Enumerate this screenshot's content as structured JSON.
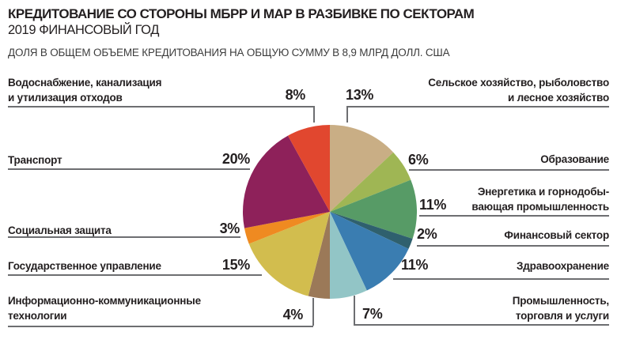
{
  "header": {
    "title": "КРЕДИТОВАНИЕ СО СТОРОНЫ МБРР И МАР В РАЗБИВКЕ ПО СЕКТОРАМ",
    "fiscal_year": "2019 ФИНАНСОВЫЙ ГОД",
    "description": "ДОЛЯ В ОБЩЕМ ОБЪЕМЕ КРЕДИТОВАНИЯ НА ОБЩУЮ СУММУ В 8,9 МЛРД ДОЛЛ. США"
  },
  "chart_data": {
    "type": "pie",
    "title": "КРЕДИТОВАНИЕ СО СТОРОНЫ МБРР И МАР В РАЗБИВКЕ ПО СЕКТОРАМ — 2019 ФИНАНСОВЫЙ ГОД",
    "total_label": "8,9 млрд долл. США",
    "start": "12-oclock",
    "direction": "clockwise",
    "legend_position": "callouts-left-right",
    "slices": [
      {
        "id": "agriculture",
        "label": "Сельское хозяйство, рыболовство и лесное хозяйство",
        "display": "Сельское хозяйство, рыболовство\nи лесное хозяйство",
        "value": 13,
        "pct_text": "13%",
        "color": "#c9ae85"
      },
      {
        "id": "education",
        "label": "Образование",
        "display": "Образование",
        "value": 6,
        "pct_text": "6%",
        "color": "#9fb654"
      },
      {
        "id": "energy-mining",
        "label": "Энергетика и горнодобывающая промышленность",
        "display": "Энергетика и горнодобы-\nвающая промышленность",
        "value": 11,
        "pct_text": "11%",
        "color": "#579b66"
      },
      {
        "id": "financial",
        "label": "Финансовый сектор",
        "display": "Финансовый сектор",
        "value": 2,
        "pct_text": "2%",
        "color": "#2f606e"
      },
      {
        "id": "health",
        "label": "Здравоохранение",
        "display": "Здравоохранение",
        "value": 11,
        "pct_text": "11%",
        "color": "#3a7db1"
      },
      {
        "id": "industry-trade",
        "label": "Промышленность, торговля и услуги",
        "display": "Промышленность,\nторговля и услуги",
        "value": 7,
        "pct_text": "7%",
        "color": "#92c5c6"
      },
      {
        "id": "ict",
        "label": "Информационно-коммуникационные технологии",
        "display": "Информационно-коммуникационные\nтехнологии",
        "value": 4,
        "pct_text": "4%",
        "color": "#9b7958"
      },
      {
        "id": "public-admin",
        "label": "Государственное управление",
        "display": "Государственное управление",
        "value": 15,
        "pct_text": "15%",
        "color": "#d2bd4e"
      },
      {
        "id": "social-protection",
        "label": "Социальная защита",
        "display": "Социальная защита",
        "value": 3,
        "pct_text": "3%",
        "color": "#ef8a21"
      },
      {
        "id": "transport",
        "label": "Транспорт",
        "display": "Транспорт",
        "value": 20,
        "pct_text": "20%",
        "color": "#8e215a"
      },
      {
        "id": "water-sanitation",
        "label": "Водоснабжение, канализация и утилизация отходов",
        "display": "Водоснабжение, канализация\nи утилизация отходов",
        "value": 8,
        "pct_text": "8%",
        "color": "#e1472f"
      }
    ]
  }
}
